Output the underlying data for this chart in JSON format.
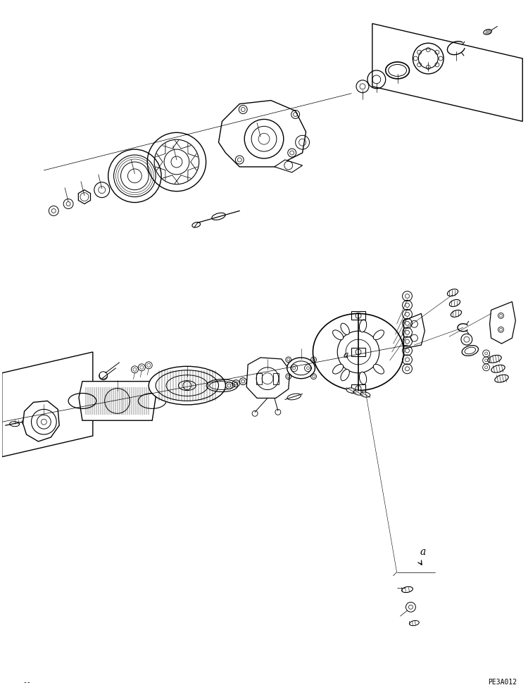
{
  "title": "",
  "background_color": "#ffffff",
  "line_color": "#000000",
  "fig_width": 7.5,
  "fig_height": 9.9,
  "dpi": 100,
  "bottom_left_text": "--",
  "bottom_right_text": "PE3A012",
  "detail_label": "a",
  "font_size_small": 7,
  "font_size_medium": 9
}
